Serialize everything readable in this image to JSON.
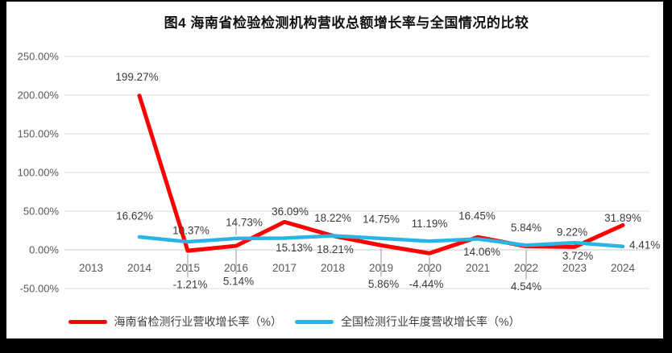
{
  "page": {
    "background": "#ffffff",
    "frame_color": "#000000"
  },
  "chart_data": {
    "type": "line",
    "title": "图4 海南省检验检测机构营收总额增长率与全国情况的比较",
    "categories": [
      "2013",
      "2014",
      "2015",
      "2016",
      "2017",
      "2018",
      "2019",
      "2020",
      "2021",
      "2022",
      "2023",
      "2024"
    ],
    "series": [
      {
        "name": "海南省检测行业营收增长率（%）",
        "color": "#fe0000",
        "values": [
          null,
          199.27,
          -1.21,
          5.14,
          36.09,
          18.21,
          5.86,
          -4.44,
          16.45,
          4.54,
          3.72,
          31.89
        ]
      },
      {
        "name": "全国检测行业年度营收增长率（%）",
        "color": "#29b4e6",
        "values": [
          null,
          16.62,
          10.37,
          14.73,
          15.13,
          18.22,
          14.75,
          11.19,
          14.06,
          5.84,
          9.22,
          4.41
        ]
      }
    ],
    "xlabel": "",
    "ylabel": "",
    "ylim": [
      -50,
      250
    ],
    "ytick_step": 50,
    "ytick_labels": [
      "250.00%",
      "200.00%",
      "150.00%",
      "100.00%",
      "50.00%",
      "0.00%",
      "-50.00%"
    ],
    "grid": true,
    "legend_position": "bottom",
    "data_label_format": "0.00%"
  }
}
